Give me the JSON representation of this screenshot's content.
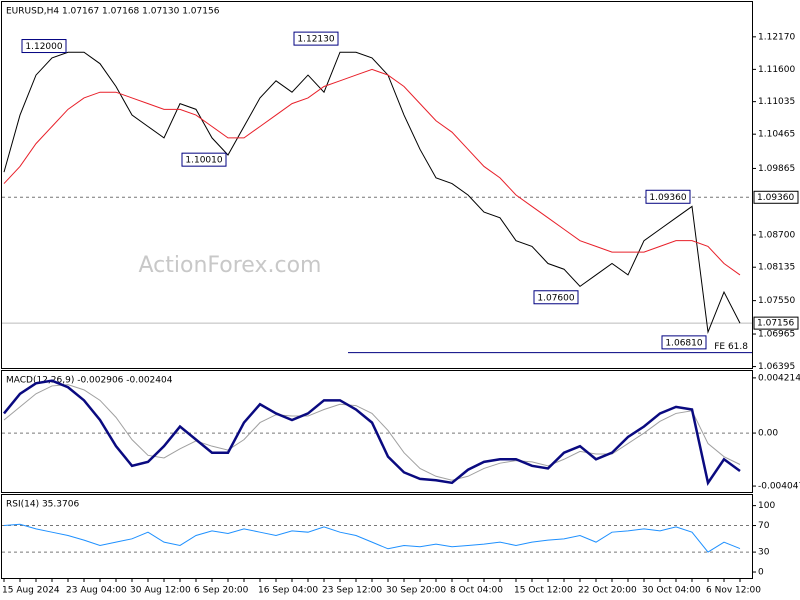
{
  "chart_data": [
    {
      "type": "line",
      "title": "EURUSD,H4 1.07167 1.07168 1.07130 1.07156",
      "watermark": "ActionForex.com",
      "ylim": [
        1.0637,
        1.1278
      ],
      "yticks": [
        {
          "value": 1.1217,
          "label": "1.12170"
        },
        {
          "value": 1.116,
          "label": "1.11600"
        },
        {
          "value": 1.11035,
          "label": "1.11035"
        },
        {
          "value": 1.10465,
          "label": "1.10465"
        },
        {
          "value": 1.09865,
          "label": "1.09865"
        },
        {
          "value": 1.087,
          "label": "1.08700"
        },
        {
          "value": 1.08135,
          "label": "1.08135"
        },
        {
          "value": 1.0755,
          "label": "1.07550"
        },
        {
          "value": 1.06965,
          "label": "1.06965"
        },
        {
          "value": 1.06395,
          "label": "1.06395"
        }
      ],
      "series": [
        {
          "name": "EURUSD",
          "color": "#000000",
          "values": [
            1.098,
            1.108,
            1.115,
            1.118,
            1.119,
            1.119,
            1.117,
            1.113,
            1.108,
            1.106,
            1.104,
            1.11,
            1.109,
            1.104,
            1.101,
            1.106,
            1.111,
            1.114,
            1.112,
            1.115,
            1.112,
            1.119,
            1.119,
            1.118,
            1.115,
            1.108,
            1.102,
            1.097,
            1.096,
            1.094,
            1.091,
            1.09,
            1.086,
            1.085,
            1.082,
            1.081,
            1.078,
            1.08,
            1.082,
            1.08,
            1.086,
            1.088,
            1.09,
            1.092,
            1.07,
            1.077,
            1.07156
          ]
        },
        {
          "name": "MA",
          "color": "#e8202a",
          "values": [
            1.096,
            1.099,
            1.103,
            1.106,
            1.109,
            1.111,
            1.112,
            1.112,
            1.111,
            1.11,
            1.109,
            1.109,
            1.108,
            1.106,
            1.104,
            1.104,
            1.106,
            1.108,
            1.11,
            1.111,
            1.113,
            1.114,
            1.115,
            1.116,
            1.115,
            1.113,
            1.11,
            1.107,
            1.105,
            1.102,
            1.099,
            1.097,
            1.094,
            1.092,
            1.09,
            1.088,
            1.086,
            1.085,
            1.084,
            1.084,
            1.084,
            1.085,
            1.086,
            1.086,
            1.085,
            1.082,
            1.08
          ]
        }
      ],
      "annotations": [
        {
          "label": "1.12000",
          "value": 1.12,
          "at": 4
        },
        {
          "label": "1.10010",
          "value": 1.1001,
          "at": 14
        },
        {
          "label": "1.12130",
          "value": 1.1213,
          "at": 21
        },
        {
          "label": "1.09360",
          "value": 1.0936,
          "at": 43
        },
        {
          "label": "1.07600",
          "value": 1.076,
          "at": 36
        },
        {
          "label": "1.06810",
          "value": 1.0681,
          "at": 44
        }
      ],
      "levels": [
        {
          "value": 1.0936,
          "label": "1.09360"
        },
        {
          "value": 1.07156,
          "label": "1.07156"
        }
      ],
      "fe_level": {
        "value": 1.0664,
        "label": "FE 61.8",
        "from": 21
      }
    },
    {
      "type": "line",
      "title": "MACD(12,26,9) -0.002906 -0.002404",
      "ylim": [
        -0.0045,
        0.00474
      ],
      "yticks": [
        {
          "value": 0.004214,
          "label": "0.004214"
        },
        {
          "value": 0,
          "label": "0.00"
        },
        {
          "value": -0.004047,
          "label": "-0.004047"
        }
      ],
      "levels": [
        0
      ],
      "series": [
        {
          "name": "Signal",
          "color": "#a0a0a0",
          "values": [
            0.001,
            0.002,
            0.003,
            0.0036,
            0.0037,
            0.0033,
            0.0025,
            0.0012,
            -0.0005,
            -0.0017,
            -0.0019,
            -0.0012,
            -0.0006,
            -0.001,
            -0.0013,
            -0.0005,
            0.0008,
            0.0014,
            0.0013,
            0.0013,
            0.0018,
            0.0022,
            0.0021,
            0.0015,
            0.0002,
            -0.0015,
            -0.0027,
            -0.0033,
            -0.0036,
            -0.0033,
            -0.0027,
            -0.0023,
            -0.0021,
            -0.0022,
            -0.0025,
            -0.002,
            -0.0014,
            -0.0016,
            -0.0016,
            -0.0008,
            0.0,
            0.0009,
            0.0015,
            0.0017,
            -0.0008,
            -0.0018,
            -0.0024
          ]
        },
        {
          "name": "MACD",
          "color": "#0a0a80",
          "values": [
            0.0015,
            0.003,
            0.0038,
            0.004,
            0.0035,
            0.0025,
            0.001,
            -0.001,
            -0.0025,
            -0.0022,
            -0.001,
            0.0005,
            -0.0005,
            -0.0015,
            -0.0015,
            0.0008,
            0.0022,
            0.0015,
            0.001,
            0.0015,
            0.0025,
            0.0025,
            0.0018,
            0.0008,
            -0.0018,
            -0.003,
            -0.0035,
            -0.0036,
            -0.0038,
            -0.0028,
            -0.0022,
            -0.002,
            -0.002,
            -0.0025,
            -0.0027,
            -0.0015,
            -0.001,
            -0.002,
            -0.0015,
            -0.0003,
            0.0005,
            0.0015,
            0.002,
            0.0018,
            -0.0038,
            -0.002,
            -0.0029
          ]
        }
      ]
    },
    {
      "type": "line",
      "title": "RSI(14) 35.3706",
      "ylim": [
        -9,
        116
      ],
      "yticks": [
        100,
        70,
        30,
        0
      ],
      "levels": [
        70,
        30
      ],
      "series": [
        {
          "name": "RSI",
          "color": "#1e90ff",
          "values": [
            70,
            72,
            65,
            60,
            55,
            48,
            40,
            45,
            50,
            60,
            45,
            40,
            55,
            62,
            58,
            65,
            60,
            55,
            62,
            60,
            68,
            60,
            55,
            45,
            35,
            40,
            38,
            42,
            38,
            40,
            42,
            45,
            40,
            45,
            48,
            50,
            55,
            45,
            60,
            62,
            65,
            62,
            68,
            60,
            30,
            45,
            35.37
          ]
        }
      ],
      "categories": [
        "15 Aug 2024",
        null,
        null,
        null,
        "23 Aug 04:00",
        null,
        null,
        null,
        "30 Aug 12:00",
        null,
        null,
        null,
        "6 Sep 20:00",
        null,
        null,
        null,
        "16 Sep 04:00",
        null,
        null,
        null,
        "23 Sep 12:00",
        null,
        null,
        null,
        "30 Sep 20:00",
        null,
        null,
        null,
        "8 Oct 04:00",
        null,
        null,
        null,
        "15 Oct 12:00",
        null,
        null,
        null,
        "22 Oct 20:00",
        null,
        null,
        null,
        "30 Oct 04:00",
        null,
        null,
        null,
        "6 Nov 12:00",
        null,
        null
      ]
    }
  ]
}
